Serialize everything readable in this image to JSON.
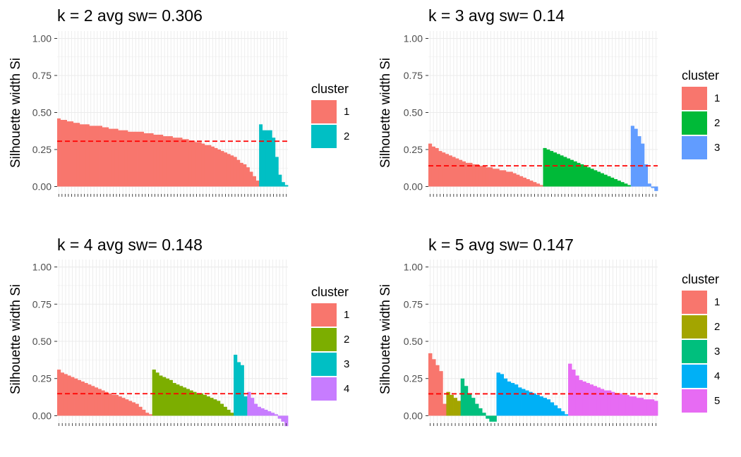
{
  "legend_title": "cluster",
  "ylabel": "Silhouette width Si",
  "colors": {
    "k2": [
      "#F8766D",
      "#00BFC4"
    ],
    "k3": [
      "#F8766D",
      "#00BA38",
      "#619CFF"
    ],
    "k4": [
      "#F8766D",
      "#7CAE00",
      "#00BFC4",
      "#C77CFF"
    ],
    "k5": [
      "#F8766D",
      "#A3A500",
      "#00BF7D",
      "#00B0F6",
      "#E76BF3"
    ],
    "average_line": "#FF0000"
  },
  "chart_data": [
    {
      "type": "bar",
      "title": "k = 2 avg sw= 0.306",
      "ylabel": "Silhouette width Si",
      "ylim": [
        -0.05,
        1.05
      ],
      "y_ticks": [
        "0.00",
        "0.25",
        "0.50",
        "0.75",
        "1.00"
      ],
      "grid": true,
      "legend_position": "right",
      "average_silhouette": 0.306,
      "series": [
        {
          "name": "1",
          "values": [
            0.46,
            0.45,
            0.45,
            0.44,
            0.44,
            0.43,
            0.43,
            0.42,
            0.42,
            0.42,
            0.41,
            0.41,
            0.41,
            0.41,
            0.4,
            0.4,
            0.39,
            0.39,
            0.39,
            0.38,
            0.38,
            0.38,
            0.37,
            0.37,
            0.37,
            0.37,
            0.37,
            0.36,
            0.36,
            0.36,
            0.35,
            0.35,
            0.35,
            0.34,
            0.34,
            0.34,
            0.33,
            0.33,
            0.33,
            0.32,
            0.32,
            0.31,
            0.31,
            0.3,
            0.3,
            0.29,
            0.28,
            0.28,
            0.27,
            0.26,
            0.25,
            0.24,
            0.23,
            0.22,
            0.21,
            0.2,
            0.18,
            0.16,
            0.15,
            0.13,
            0.1,
            0.07,
            0.04
          ]
        },
        {
          "name": "2",
          "values": [
            0.42,
            0.38,
            0.38,
            0.38,
            0.33,
            0.2,
            0.08,
            0.03,
            0.01
          ]
        }
      ]
    },
    {
      "type": "bar",
      "title": "k = 3 avg sw= 0.14",
      "ylabel": "Silhouette width Si",
      "ylim": [
        -0.05,
        1.05
      ],
      "y_ticks": [
        "0.00",
        "0.25",
        "0.50",
        "0.75",
        "1.00"
      ],
      "grid": true,
      "legend_position": "right",
      "average_silhouette": 0.14,
      "series": [
        {
          "name": "1",
          "values": [
            0.29,
            0.27,
            0.26,
            0.24,
            0.23,
            0.22,
            0.21,
            0.2,
            0.19,
            0.18,
            0.17,
            0.16,
            0.16,
            0.15,
            0.15,
            0.14,
            0.14,
            0.13,
            0.13,
            0.12,
            0.12,
            0.11,
            0.11,
            0.1,
            0.1,
            0.09,
            0.08,
            0.07,
            0.06,
            0.05,
            0.04,
            0.03,
            0.02,
            0.01
          ]
        },
        {
          "name": "2",
          "values": [
            0.26,
            0.25,
            0.24,
            0.23,
            0.22,
            0.21,
            0.2,
            0.19,
            0.18,
            0.17,
            0.16,
            0.15,
            0.14,
            0.13,
            0.12,
            0.11,
            0.1,
            0.09,
            0.08,
            0.07,
            0.06,
            0.05,
            0.04,
            0.03,
            0.02,
            0.01
          ]
        },
        {
          "name": "3",
          "values": [
            0.41,
            0.39,
            0.34,
            0.29,
            0.15,
            0.02,
            -0.01,
            -0.03
          ]
        }
      ]
    },
    {
      "type": "bar",
      "title": "k = 4 avg sw= 0.148",
      "ylabel": "Silhouette width Si",
      "ylim": [
        -0.05,
        1.05
      ],
      "y_ticks": [
        "0.00",
        "0.25",
        "0.50",
        "0.75",
        "1.00"
      ],
      "grid": true,
      "legend_position": "right",
      "average_silhouette": 0.148,
      "series": [
        {
          "name": "1",
          "values": [
            0.31,
            0.29,
            0.28,
            0.27,
            0.26,
            0.25,
            0.24,
            0.23,
            0.22,
            0.21,
            0.2,
            0.19,
            0.18,
            0.17,
            0.16,
            0.15,
            0.14,
            0.14,
            0.13,
            0.12,
            0.11,
            0.1,
            0.09,
            0.08,
            0.06,
            0.04,
            0.02,
            0.01
          ]
        },
        {
          "name": "2",
          "values": [
            0.31,
            0.29,
            0.27,
            0.26,
            0.25,
            0.24,
            0.22,
            0.21,
            0.2,
            0.19,
            0.18,
            0.17,
            0.16,
            0.15,
            0.15,
            0.14,
            0.13,
            0.12,
            0.11,
            0.1,
            0.08,
            0.06,
            0.04,
            0.02
          ]
        },
        {
          "name": "3",
          "values": [
            0.41,
            0.36,
            0.34,
            0.13
          ]
        },
        {
          "name": "4",
          "values": [
            0.16,
            0.12,
            0.08,
            0.06,
            0.05,
            0.04,
            0.03,
            0.02,
            0.01,
            -0.02,
            -0.04,
            -0.07
          ]
        }
      ]
    },
    {
      "type": "bar",
      "title": "k = 5 avg sw= 0.147",
      "ylabel": "Silhouette width Si",
      "ylim": [
        -0.05,
        1.05
      ],
      "y_ticks": [
        "0.00",
        "0.25",
        "0.50",
        "0.75",
        "1.00"
      ],
      "grid": true,
      "legend_position": "right",
      "average_silhouette": 0.147,
      "series": [
        {
          "name": "1",
          "values": [
            0.42,
            0.38,
            0.34,
            0.3,
            0.08
          ]
        },
        {
          "name": "2",
          "values": [
            0.16,
            0.14,
            0.12,
            0.1
          ]
        },
        {
          "name": "3",
          "values": [
            0.25,
            0.2,
            0.15,
            0.12,
            0.08,
            0.05,
            0.02,
            -0.02,
            -0.04,
            -0.04
          ]
        },
        {
          "name": "4",
          "values": [
            0.29,
            0.28,
            0.25,
            0.23,
            0.22,
            0.21,
            0.19,
            0.18,
            0.17,
            0.16,
            0.15,
            0.14,
            0.13,
            0.12,
            0.11,
            0.09,
            0.07,
            0.05,
            0.03,
            0.01
          ]
        },
        {
          "name": "5",
          "values": [
            0.35,
            0.31,
            0.27,
            0.24,
            0.23,
            0.22,
            0.21,
            0.2,
            0.19,
            0.18,
            0.17,
            0.17,
            0.16,
            0.15,
            0.15,
            0.14,
            0.14,
            0.13,
            0.13,
            0.12,
            0.12,
            0.11,
            0.11,
            0.11,
            0.1
          ]
        }
      ]
    }
  ]
}
